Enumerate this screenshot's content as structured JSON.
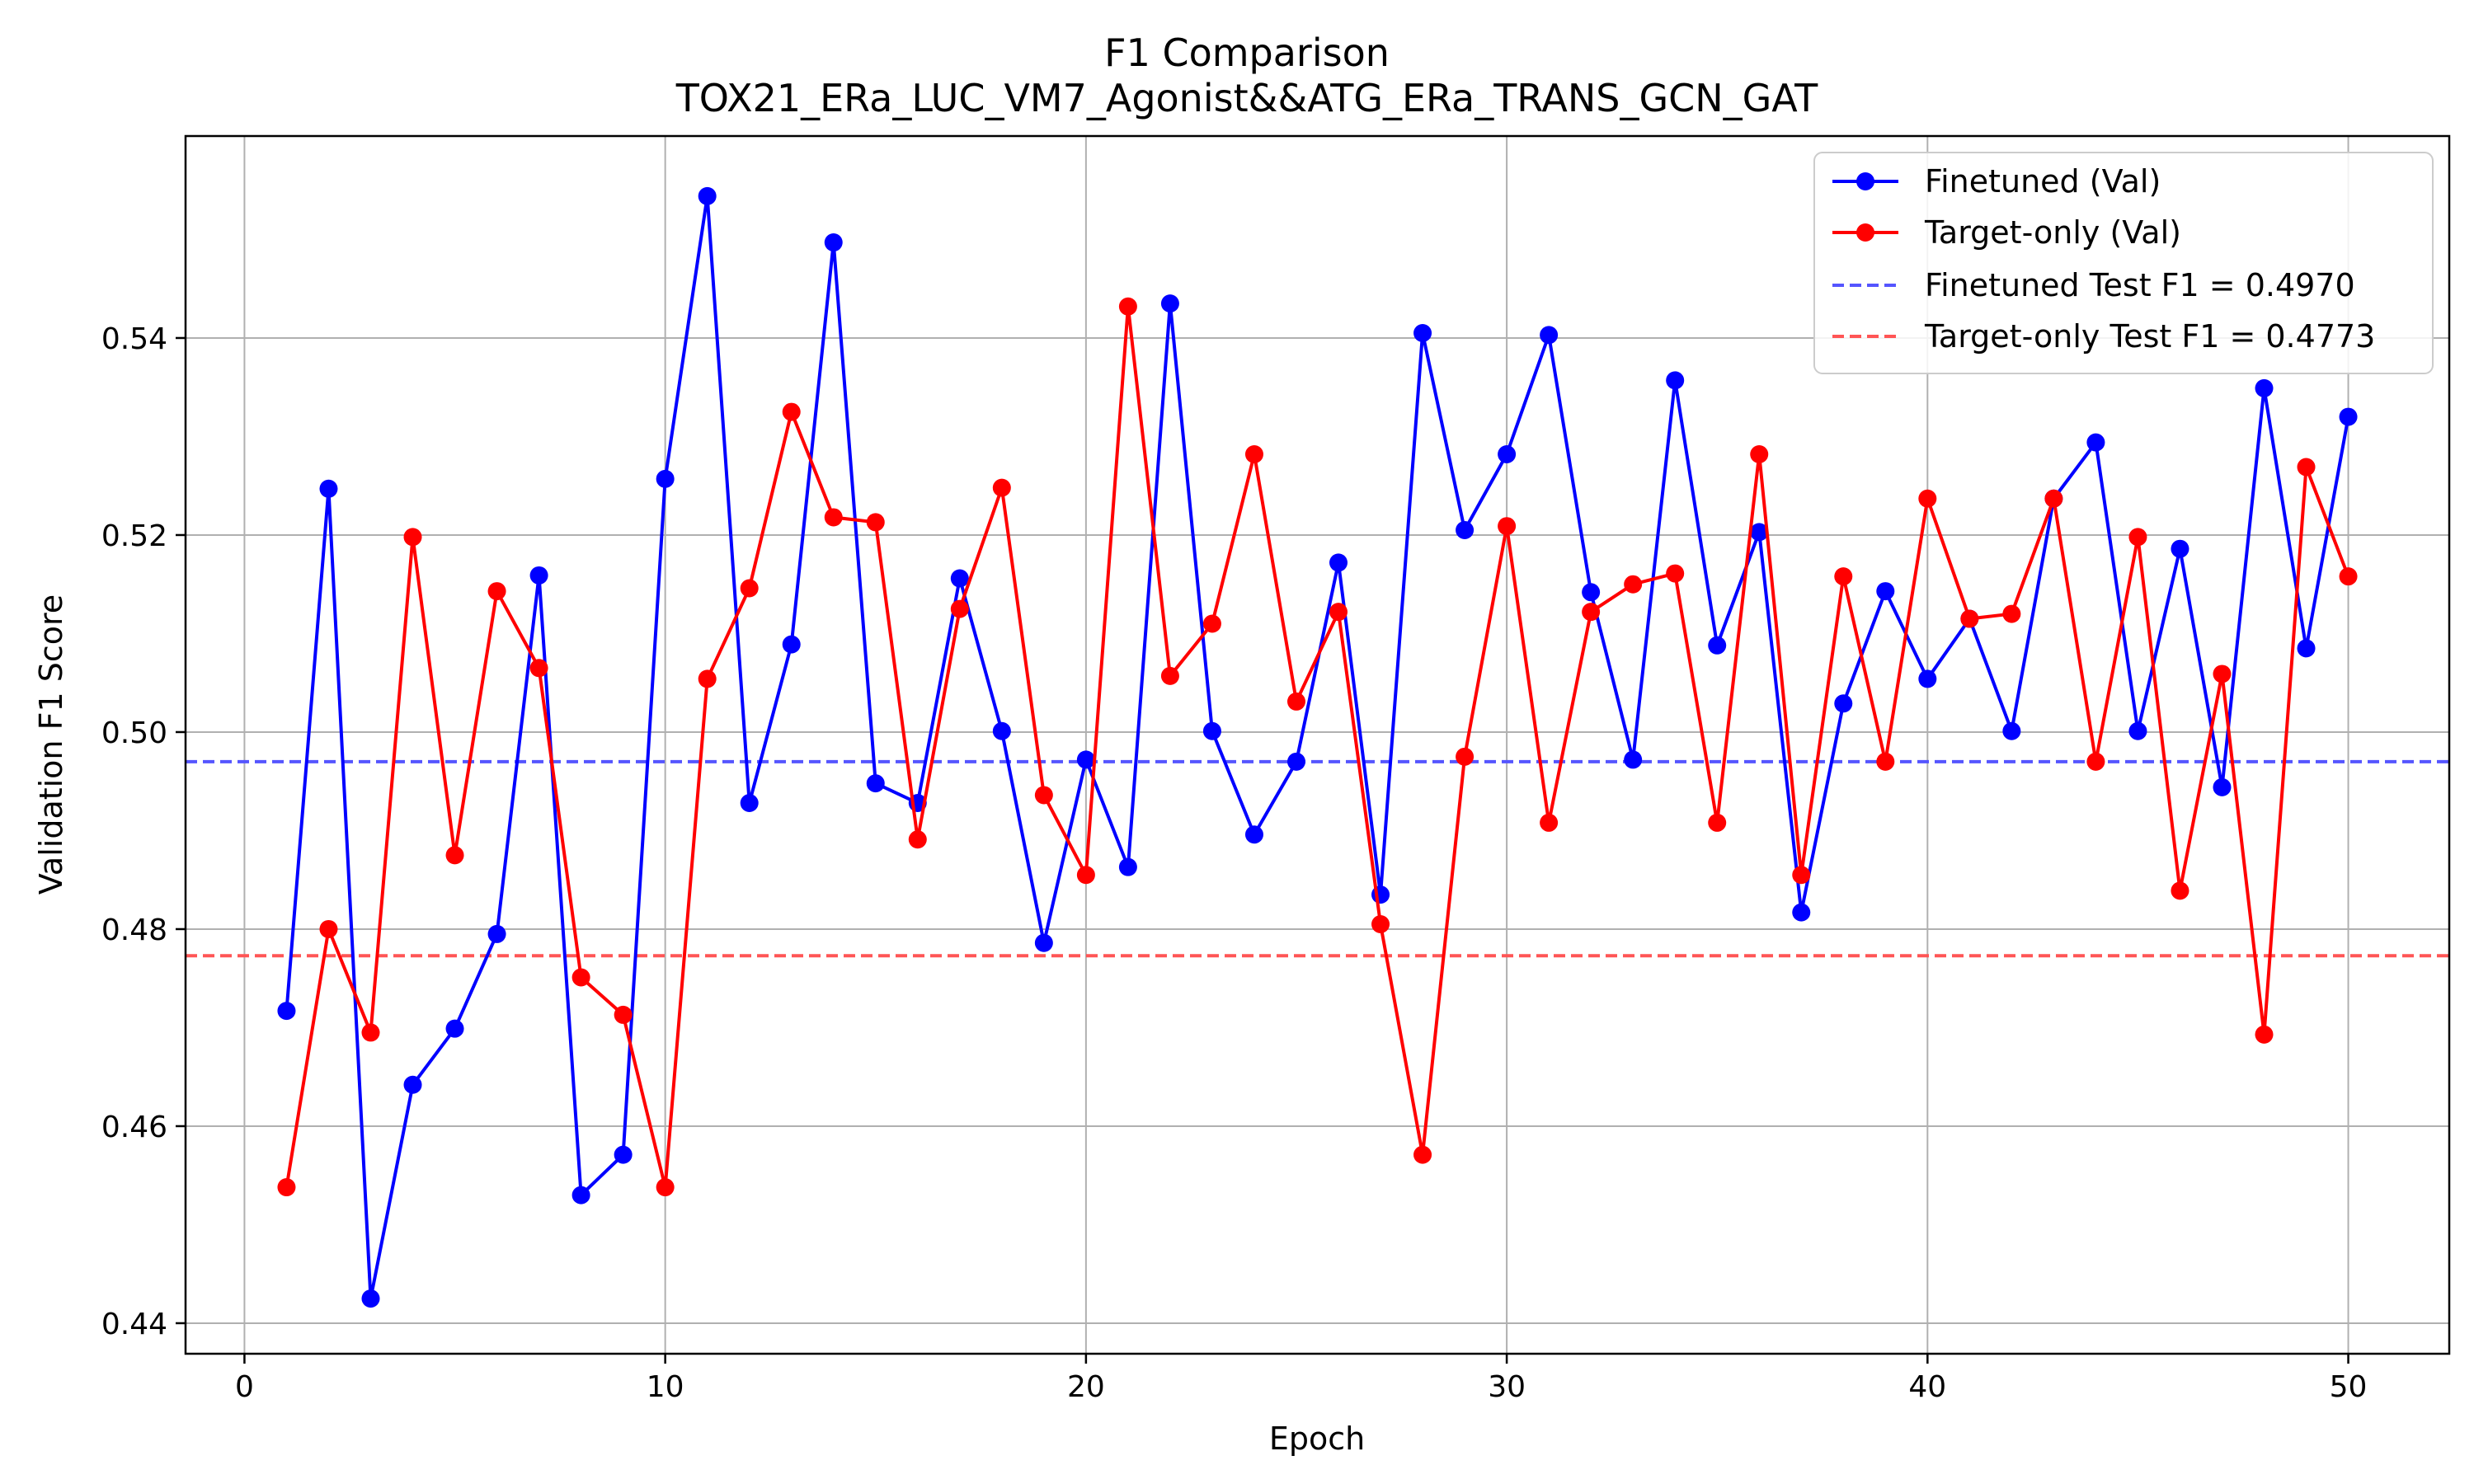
{
  "chart_data": {
    "type": "line",
    "title": "F1 Comparison",
    "subtitle": "TOX21_ERa_LUC_VM7_Agonist&&ATG_ERa_TRANS_GCN_GAT",
    "xlabel": "Epoch",
    "ylabel": "Validation F1 Score",
    "xlim": [
      -1.4,
      52.4
    ],
    "ylim": [
      0.4369,
      0.5605
    ],
    "xticks": [
      0,
      10,
      20,
      30,
      40,
      50
    ],
    "yticks": [
      0.44,
      0.46,
      0.48,
      0.5,
      0.52,
      0.54
    ],
    "xtick_labels": [
      "0",
      "10",
      "20",
      "30",
      "40",
      "50"
    ],
    "ytick_labels": [
      "0.44",
      "0.46",
      "0.48",
      "0.50",
      "0.52",
      "0.54"
    ],
    "grid": true,
    "legend_position": "top-right",
    "x": [
      1,
      2,
      3,
      4,
      5,
      6,
      7,
      8,
      9,
      10,
      11,
      12,
      13,
      14,
      15,
      16,
      17,
      18,
      19,
      20,
      21,
      22,
      23,
      24,
      25,
      26,
      27,
      28,
      29,
      30,
      31,
      32,
      33,
      34,
      35,
      36,
      37,
      38,
      39,
      40,
      41,
      42,
      43,
      44,
      45,
      46,
      47,
      48,
      49,
      50
    ],
    "series": [
      {
        "name": "Finetuned (Val)",
        "color": "#0000ff",
        "style": "solid-marker",
        "values": [
          0.4717,
          0.5247,
          0.4425,
          0.4642,
          0.4699,
          0.4795,
          0.5159,
          0.453,
          0.4571,
          0.5257,
          0.5544,
          0.4928,
          0.5089,
          0.5497,
          0.4948,
          0.4928,
          0.5156,
          0.5001,
          0.4786,
          0.4972,
          0.4863,
          0.5435,
          0.5001,
          0.4896,
          0.497,
          0.5172,
          0.4835,
          0.5405,
          0.5205,
          0.5282,
          0.5403,
          0.5142,
          0.4972,
          0.5357,
          0.5088,
          0.5203,
          0.4817,
          0.5029,
          0.5143,
          0.5054,
          0.5115,
          0.5001,
          0.5237,
          0.5294,
          0.5001,
          0.5186,
          0.4944,
          0.5349,
          0.5085,
          0.532
        ]
      },
      {
        "name": "Target-only (Val)",
        "color": "#ff0000",
        "style": "solid-marker",
        "values": [
          0.4538,
          0.48,
          0.4695,
          0.5198,
          0.4875,
          0.5143,
          0.5065,
          0.4751,
          0.4713,
          0.4538,
          0.5054,
          0.5146,
          0.5325,
          0.5218,
          0.5213,
          0.4891,
          0.5125,
          0.5248,
          0.4936,
          0.4855,
          0.5432,
          0.5057,
          0.511,
          0.5282,
          0.5031,
          0.5122,
          0.4805,
          0.4571,
          0.4975,
          0.5209,
          0.4908,
          0.5122,
          0.515,
          0.5161,
          0.4908,
          0.5282,
          0.4855,
          0.5158,
          0.497,
          0.5237,
          0.5115,
          0.512,
          0.5237,
          0.497,
          0.5198,
          0.4839,
          0.5059,
          0.4693,
          0.5269,
          0.5158
        ]
      }
    ],
    "reference_lines": [
      {
        "name": "Finetuned Test F1 = 0.4970",
        "value": 0.497,
        "color": "#5555ff",
        "style": "dashed"
      },
      {
        "name": "Target-only Test F1 = 0.4773",
        "value": 0.4773,
        "color": "#ff5555",
        "style": "dashed"
      }
    ]
  }
}
